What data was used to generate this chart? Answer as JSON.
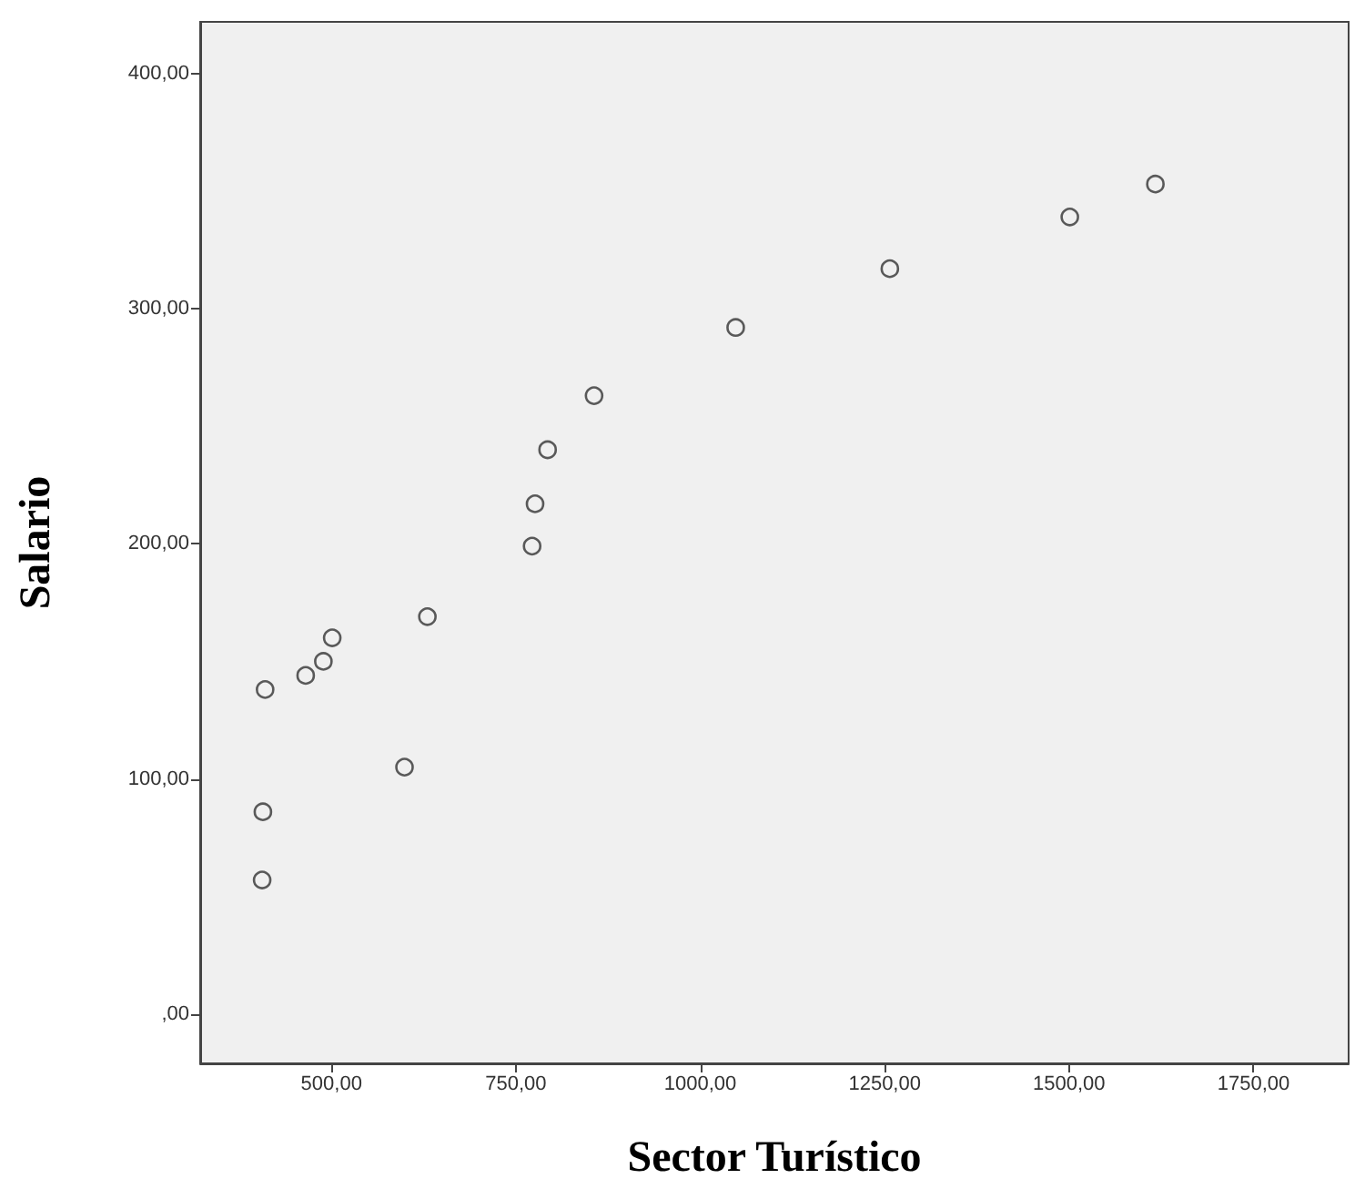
{
  "chart_data": {
    "type": "scatter",
    "xlabel": "Sector Turístico",
    "ylabel": "Salario",
    "x": [
      1617,
      1501,
      1257,
      1048,
      856,
      793,
      776,
      772,
      630,
      501,
      489,
      465,
      410,
      599,
      407,
      406
    ],
    "values": [
      353,
      339,
      317,
      292,
      263,
      240,
      217,
      199,
      169,
      160,
      150,
      144,
      138,
      105,
      86,
      57
    ],
    "color": "#333333",
    "marker": "circle",
    "grid": false,
    "xlim": [
      322,
      1879
    ],
    "ylim": [
      -21,
      422
    ],
    "xticks": [
      {
        "value": 500,
        "label": "500,00"
      },
      {
        "value": 750,
        "label": "750,00"
      },
      {
        "value": 1000,
        "label": "1000,00"
      },
      {
        "value": 1250,
        "label": "1250,00"
      },
      {
        "value": 1500,
        "label": "1500,00"
      },
      {
        "value": 1750,
        "label": "1750,00"
      }
    ],
    "yticks": [
      {
        "value": 0,
        "label": ",00"
      },
      {
        "value": 100,
        "label": "100,00"
      },
      {
        "value": 200,
        "label": "200,00"
      },
      {
        "value": 300,
        "label": "300,00"
      },
      {
        "value": 400,
        "label": "400,00"
      }
    ]
  }
}
